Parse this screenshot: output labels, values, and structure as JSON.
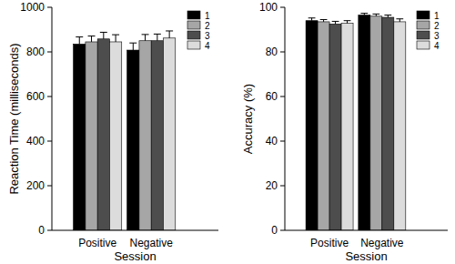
{
  "chart_data": [
    {
      "type": "bar",
      "x_label": "Session",
      "y_label": "Reaction Time  (milliseconds)",
      "categories": [
        "Positive",
        "Negative"
      ],
      "series": [
        {
          "name": "1",
          "color": "#000000",
          "values": [
            835,
            808
          ],
          "errors": [
            32,
            32
          ]
        },
        {
          "name": "2",
          "color": "#a6a6a6",
          "values": [
            845,
            850
          ],
          "errors": [
            26,
            28
          ]
        },
        {
          "name": "3",
          "color": "#4d4d4d",
          "values": [
            858,
            850
          ],
          "errors": [
            30,
            30
          ]
        },
        {
          "name": "4",
          "color": "#dcdcdc",
          "values": [
            845,
            862
          ],
          "errors": [
            32,
            32
          ]
        }
      ],
      "ylim": [
        0,
        1000
      ],
      "yticks": [
        0,
        200,
        400,
        600,
        800,
        1000
      ],
      "legend": "top-right"
    },
    {
      "type": "bar",
      "x_label": "Session",
      "y_label": "Accuracy (%)",
      "categories": [
        "Positive",
        "Negative"
      ],
      "series": [
        {
          "name": "1",
          "color": "#000000",
          "values": [
            94,
            96.5
          ],
          "errors": [
            1.2,
            0.8
          ]
        },
        {
          "name": "2",
          "color": "#a6a6a6",
          "values": [
            93.5,
            96
          ],
          "errors": [
            1.0,
            1.0
          ]
        },
        {
          "name": "3",
          "color": "#4d4d4d",
          "values": [
            92.5,
            95.5
          ],
          "errors": [
            1.2,
            1.0
          ]
        },
        {
          "name": "4",
          "color": "#dcdcdc",
          "values": [
            92.8,
            93.5
          ],
          "errors": [
            1.2,
            1.3
          ]
        }
      ],
      "ylim": [
        0,
        100
      ],
      "yticks": [
        0,
        20,
        40,
        60,
        80,
        100
      ],
      "legend": "top-right"
    }
  ]
}
